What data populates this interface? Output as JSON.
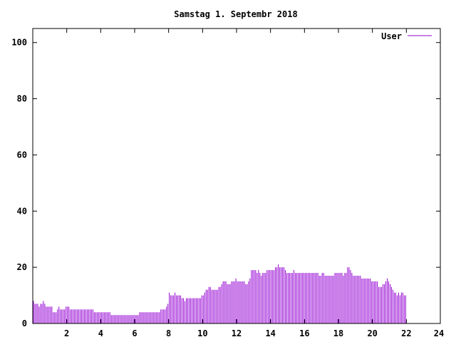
{
  "chart_data": {
    "type": "bar",
    "title": "Samstag 1. Septembr 2018",
    "xlabel": "",
    "ylabel": "",
    "xlim": [
      0,
      24
    ],
    "ylim": [
      0,
      105
    ],
    "x_ticks": [
      2,
      4,
      6,
      8,
      10,
      12,
      14,
      16,
      18,
      20,
      22,
      24
    ],
    "y_ticks": [
      0,
      20,
      40,
      60,
      80,
      100
    ],
    "grid": false,
    "legend_position": "top-right",
    "series_color": "#9400d3",
    "series": [
      {
        "name": "User",
        "interval_minutes": 5,
        "values": [
          8,
          7,
          7,
          7,
          6,
          7,
          7,
          8,
          7,
          6,
          6,
          6,
          6,
          6,
          4,
          4,
          4,
          5,
          6,
          5,
          5,
          5,
          5,
          6,
          6,
          6,
          5,
          5,
          5,
          5,
          5,
          5,
          5,
          5,
          5,
          5,
          5,
          5,
          5,
          5,
          5,
          5,
          5,
          4,
          4,
          4,
          4,
          4,
          4,
          4,
          4,
          4,
          4,
          4,
          4,
          3,
          3,
          3,
          3,
          3,
          3,
          3,
          3,
          3,
          3,
          3,
          3,
          3,
          3,
          3,
          3,
          3,
          3,
          3,
          3,
          4,
          4,
          4,
          4,
          4,
          4,
          4,
          4,
          4,
          4,
          4,
          4,
          4,
          4,
          4,
          5,
          5,
          5,
          5,
          6,
          7,
          11,
          10,
          10,
          10,
          11,
          10,
          10,
          10,
          10,
          9,
          9,
          8,
          9,
          9,
          9,
          9,
          9,
          9,
          9,
          9,
          9,
          9,
          9,
          10,
          10,
          11,
          12,
          12,
          13,
          13,
          12,
          12,
          12,
          12,
          12,
          13,
          13,
          14,
          15,
          15,
          15,
          14,
          14,
          14,
          15,
          15,
          15,
          16,
          15,
          15,
          15,
          15,
          15,
          15,
          14,
          14,
          15,
          16,
          19,
          19,
          19,
          19,
          18,
          19,
          18,
          17,
          18,
          18,
          18,
          19,
          19,
          19,
          19,
          19,
          19,
          20,
          20,
          21,
          20,
          20,
          20,
          20,
          19,
          18,
          18,
          18,
          18,
          18,
          19,
          18,
          18,
          18,
          18,
          18,
          18,
          18,
          18,
          18,
          18,
          18,
          18,
          18,
          18,
          18,
          18,
          18,
          17,
          17,
          18,
          18,
          17,
          17,
          17,
          17,
          17,
          17,
          17,
          18,
          18,
          18,
          18,
          18,
          18,
          17,
          18,
          18,
          20,
          20,
          19,
          18,
          17,
          17,
          17,
          17,
          17,
          17,
          16,
          16,
          16,
          16,
          16,
          16,
          16,
          15,
          15,
          15,
          15,
          15,
          13,
          13,
          13,
          14,
          14,
          15,
          16,
          15,
          14,
          13,
          12,
          11,
          11,
          10,
          11,
          10,
          11,
          11,
          10,
          10
        ]
      }
    ]
  }
}
